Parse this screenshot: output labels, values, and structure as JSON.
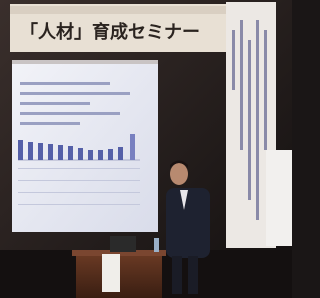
{
  "banner": {
    "title": "「人材」育成セミナー"
  }
}
